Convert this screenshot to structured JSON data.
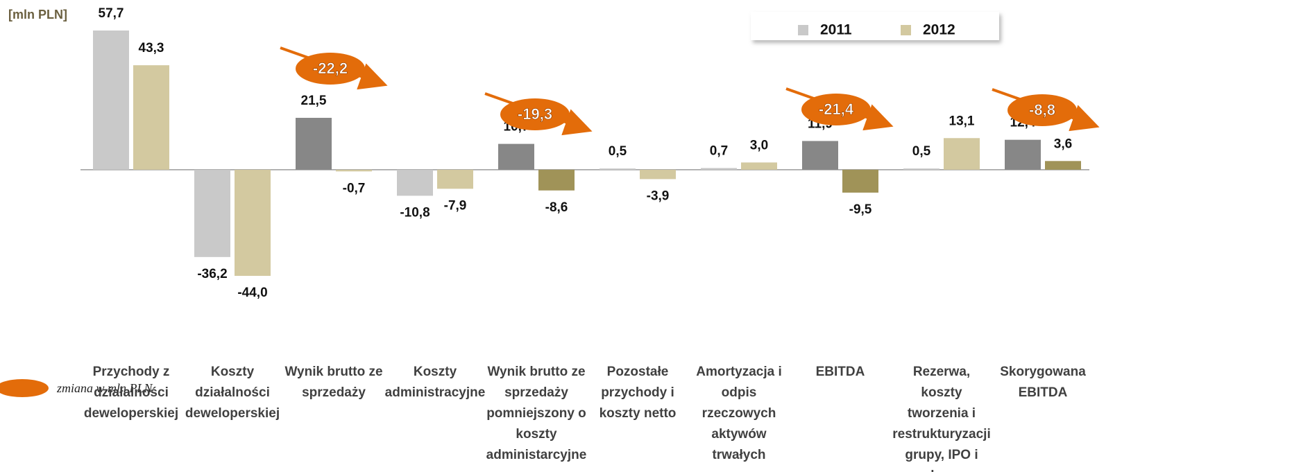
{
  "chart_data": {
    "type": "bar",
    "unit_label": "[mln PLN]",
    "categories": [
      "Przychody z działalności deweloperskiej",
      "Koszty działalności deweloperskiej",
      "Wynik brutto ze sprzedaży",
      "Koszty administracyjne",
      "Wynik brutto ze sprzedaży pomniejszony o koszty administarcyjne",
      "Pozostałe przychody i koszty netto",
      "Amortyzacja i odpis rzeczowych aktywów trwałych",
      "EBITDA",
      "Rezerwa, koszty tworzenia i restrukturyzacji grupy, IPO  i odpraw",
      "Skorygowana EBITDA"
    ],
    "series": [
      {
        "name": "2011",
        "color": "#c9c9c9",
        "colors": [
          "#c9c9c9",
          "#c9c9c9",
          "#878787",
          "#c9c9c9",
          "#878787",
          "#c9c9c9",
          "#c9c9c9",
          "#878787",
          "#c9c9c9",
          "#878787"
        ],
        "values": [
          57.7,
          -36.2,
          21.5,
          -10.8,
          10.7,
          0.5,
          0.7,
          11.9,
          0.5,
          12.4
        ],
        "value_labels": [
          "57,7",
          "-36,2",
          "21,5",
          "-10,8",
          "10,7",
          "0,5",
          "0,7",
          "11,9",
          "0,5",
          "12,4"
        ]
      },
      {
        "name": "2012",
        "color": "#d3c9a0",
        "colors": [
          "#d3c9a0",
          "#d3c9a0",
          "#d3c9a0",
          "#d3c9a0",
          "#a09358",
          "#d3c9a0",
          "#d3c9a0",
          "#a09358",
          "#d3c9a0",
          "#a09358"
        ],
        "values": [
          43.3,
          -44.0,
          -0.7,
          -7.9,
          -8.6,
          -3.9,
          3.0,
          -9.5,
          13.1,
          3.6
        ],
        "value_labels": [
          "43,3",
          "-44,0",
          "-0,7",
          "-7,9",
          "-8,6",
          "-3,9",
          "3,0",
          "-9,5",
          "13,1",
          "3,6"
        ]
      }
    ],
    "annotations": [
      {
        "value": -22.2,
        "label": "-22,2"
      },
      {
        "value": -19.3,
        "label": "-19,3"
      },
      {
        "value": -21.4,
        "label": "-21,4"
      },
      {
        "value": -8.8,
        "label": "-8,8"
      }
    ],
    "annotation_legend": "zmiana w mln PLN"
  }
}
